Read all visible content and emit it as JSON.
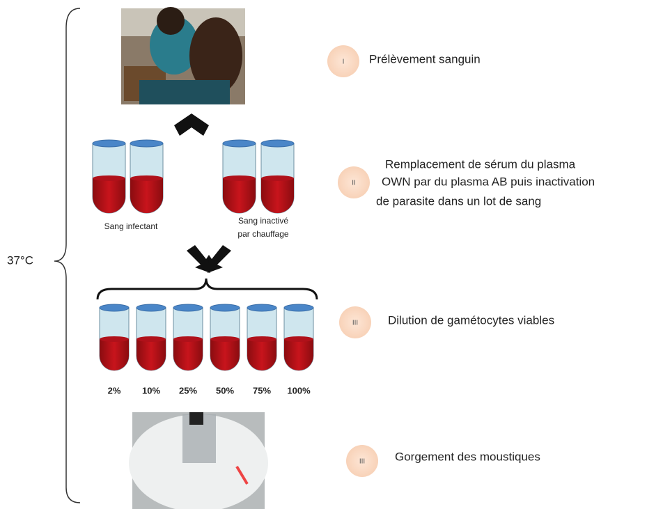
{
  "temperature": "37°C",
  "steps": [
    {
      "numeral": "I",
      "text": [
        "Prélèvement sanguin"
      ]
    },
    {
      "numeral": "II",
      "text": [
        "Remplacement  de sérum du plasma",
        "OWN par du plasma AB puis inactivation",
        "de parasite  dans un lot de sang"
      ]
    },
    {
      "numeral": "III",
      "text": [
        "Dilution de gamétocytes  viables"
      ]
    },
    {
      "numeral": "III",
      "text": [
        "Gorgement des moustiques"
      ]
    }
  ],
  "tubes": {
    "infectant": "Sang infectant",
    "inactive": [
      "Sang inactivé",
      "par chauffage"
    ]
  },
  "dilutions": [
    "2%",
    "10%",
    "25%",
    "50%",
    "75%",
    "100%"
  ]
}
